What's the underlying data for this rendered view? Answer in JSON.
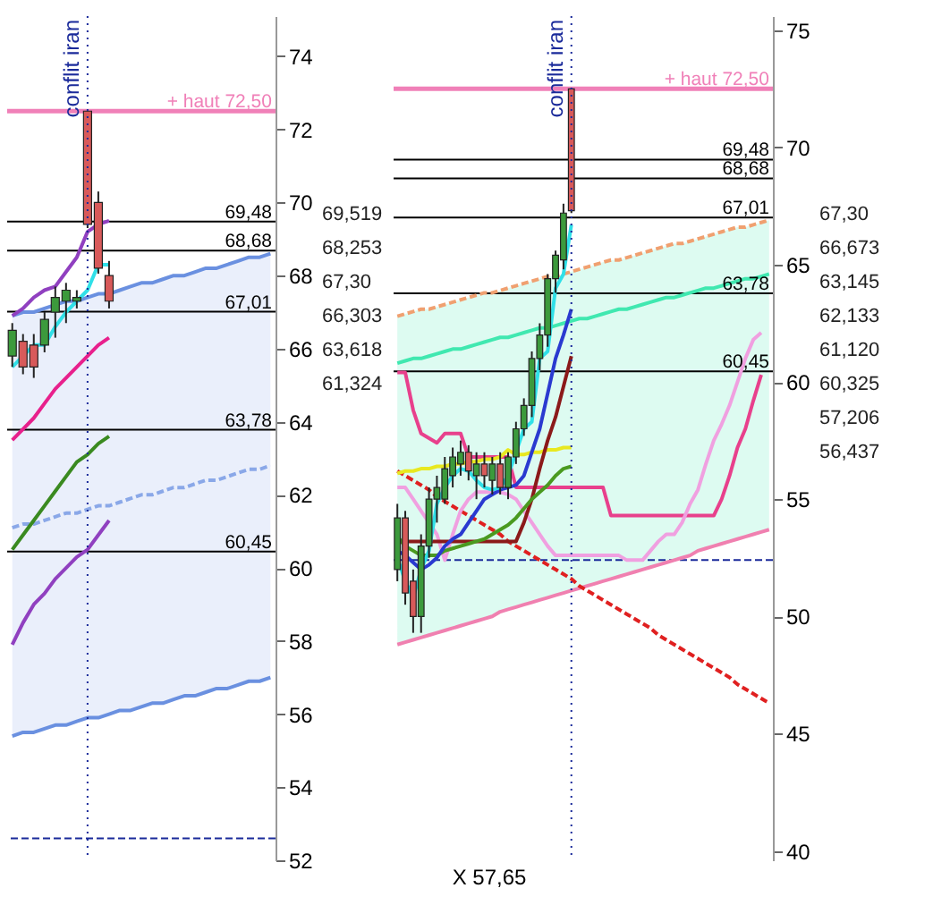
{
  "chart_data": [
    {
      "type": "candlestick",
      "categories": [
        null,
        null,
        null,
        null,
        null,
        null,
        null,
        null,
        null,
        null,
        null,
        null,
        null,
        null,
        null,
        null,
        null,
        null,
        null,
        null,
        null,
        null,
        null,
        null,
        null
      ],
      "ohlc": [
        [
          65.8,
          66.7,
          65.5,
          66.5
        ],
        [
          66.2,
          66.4,
          65.3,
          65.5
        ],
        [
          66.1,
          66.4,
          65.2,
          65.5
        ],
        [
          66.1,
          67.0,
          65.9,
          66.8
        ],
        [
          67.0,
          67.7,
          66.3,
          67.4
        ],
        [
          67.3,
          67.8,
          66.7,
          67.6
        ],
        [
          67.3,
          67.6,
          67.1,
          67.4
        ],
        [
          72.5,
          72.5,
          69.3,
          69.4
        ],
        [
          70.0,
          70.3,
          68.05,
          68.2
        ],
        [
          68.0,
          68.4,
          67.1,
          67.3
        ],
        null,
        null,
        null,
        null,
        null,
        null,
        null,
        null,
        null,
        null,
        null,
        null,
        null,
        null,
        null
      ],
      "series": [
        {
          "type": "line",
          "color": "#8aa8e8",
          "line_style": "dashed",
          "values": [
            61.1,
            61.2,
            61.2,
            61.3,
            61.4,
            61.5,
            61.5,
            61.6,
            61.7,
            61.7,
            61.8,
            61.9,
            62.0,
            62.0,
            62.1,
            62.2,
            62.2,
            62.3,
            62.4,
            62.4,
            62.5,
            62.6,
            62.7,
            62.7,
            62.8
          ],
          "lower": [
            55.4,
            55.5,
            55.5,
            55.6,
            55.7,
            55.7,
            55.8,
            55.9,
            55.9,
            56.0,
            56.1,
            56.1,
            56.2,
            56.3,
            56.3,
            56.4,
            56.5,
            56.5,
            56.6,
            56.7,
            56.7,
            56.8,
            56.9,
            56.9,
            57.0
          ],
          "upper": [
            66.9,
            67.0,
            67.0,
            67.1,
            67.2,
            67.3,
            67.3,
            67.4,
            67.5,
            67.5,
            67.6,
            67.7,
            67.8,
            67.8,
            67.9,
            68.0,
            68.0,
            68.1,
            68.2,
            68.2,
            68.3,
            68.4,
            68.5,
            68.5,
            68.6
          ]
        },
        {
          "type": "line",
          "color": "#6a90e0",
          "values": [
            55.4,
            55.5,
            55.5,
            55.6,
            55.7,
            55.7,
            55.8,
            55.9,
            55.9,
            56.0,
            56.1,
            56.1,
            56.2,
            56.3,
            56.3,
            56.4,
            56.5,
            56.5,
            56.6,
            56.7,
            56.7,
            56.8,
            56.9,
            56.9,
            57.0
          ]
        },
        {
          "type": "line",
          "color": "#6a90e0",
          "values": [
            66.9,
            67.0,
            67.0,
            67.1,
            67.2,
            67.3,
            67.3,
            67.4,
            67.5,
            67.5,
            67.6,
            67.7,
            67.8,
            67.8,
            67.9,
            68.0,
            68.0,
            68.1,
            68.2,
            68.2,
            68.3,
            68.4,
            68.5,
            68.5,
            68.6
          ]
        },
        {
          "type": "line",
          "color": "#9040c0",
          "values": [
            66.9,
            67.1,
            67.4,
            67.6,
            67.7,
            68.1,
            68.5,
            69.2,
            69.4,
            69.5,
            null,
            null,
            null,
            null,
            null,
            null,
            null,
            null,
            null,
            null,
            null,
            null,
            null,
            null,
            null
          ]
        },
        {
          "type": "line",
          "color": "#9040c0",
          "values": [
            57.9,
            58.5,
            59.0,
            59.3,
            59.7,
            60.0,
            60.3,
            60.5,
            60.9,
            61.3,
            null,
            null,
            null,
            null,
            null,
            null,
            null,
            null,
            null,
            null,
            null,
            null,
            null,
            null,
            null
          ]
        },
        {
          "type": "line",
          "color": "#e8208c",
          "values": [
            63.5,
            63.8,
            64.1,
            64.5,
            64.9,
            65.2,
            65.5,
            65.8,
            66.1,
            66.3,
            null,
            null,
            null,
            null,
            null,
            null,
            null,
            null,
            null,
            null,
            null,
            null,
            null,
            null,
            null
          ]
        },
        {
          "type": "line",
          "color": "#3a8a20",
          "values": [
            60.5,
            60.9,
            61.3,
            61.7,
            62.1,
            62.5,
            62.9,
            63.1,
            63.4,
            63.6,
            null,
            null,
            null,
            null,
            null,
            null,
            null,
            null,
            null,
            null,
            null,
            null,
            null,
            null,
            null
          ]
        },
        {
          "type": "line",
          "color": "#30e0e8",
          "values": [
            65.5,
            65.8,
            66.1,
            66.1,
            66.6,
            67.0,
            67.3,
            67.6,
            68.3,
            68.3,
            null,
            null,
            null,
            null,
            null,
            null,
            null,
            null,
            null,
            null,
            null,
            null,
            null,
            null,
            null
          ]
        }
      ],
      "ylim": [
        52,
        75.1
      ],
      "yticks": [
        52,
        54,
        56,
        58,
        60,
        62,
        64,
        66,
        68,
        70,
        72,
        74
      ],
      "tick_labels": "y",
      "ref_lines": [
        {
          "axis": "y",
          "value": 72.5,
          "label": "+ haut 72,50",
          "color": "#f080b8"
        },
        {
          "axis": "y",
          "value": 69.48,
          "label": "69,48",
          "color": "#000000"
        },
        {
          "axis": "y",
          "value": 68.68,
          "label": "68,68",
          "color": "#000000"
        },
        {
          "axis": "y",
          "value": 67.01,
          "label": "67,01",
          "color": "#000000"
        },
        {
          "axis": "y",
          "value": 63.78,
          "label": "63,78",
          "color": "#000000"
        },
        {
          "axis": "y",
          "value": 60.45,
          "label": "60,45",
          "color": "#000000"
        },
        {
          "axis": "y",
          "value": 52.6,
          "color": "#1a2a9a",
          "line_style": "dashed"
        }
      ],
      "annotations": [
        "conflit iran",
        "69,519",
        "68,253",
        "67,30",
        "66,303",
        "63,618",
        "61,324"
      ]
    },
    {
      "type": "candlestick",
      "categories": [
        null,
        null,
        null,
        null,
        null,
        null,
        null,
        null,
        null,
        null,
        null,
        null,
        null,
        null,
        null,
        null,
        null,
        null,
        null,
        null,
        null,
        null,
        null,
        null,
        null,
        null,
        null,
        null,
        null,
        null,
        null,
        null,
        null,
        null,
        null,
        null,
        null,
        null,
        null,
        null,
        null,
        null,
        null,
        null,
        null,
        null,
        null,
        null
      ],
      "xlabel": "X 57,65",
      "ohlc": [
        [
          52.0,
          54.8,
          51.5,
          54.2
        ],
        [
          54.2,
          54.5,
          50.5,
          51.0
        ],
        [
          51.5,
          52.0,
          49.3,
          50.0
        ],
        [
          50.0,
          53.5,
          49.3,
          53.0
        ],
        [
          53.0,
          55.5,
          52.5,
          55.0
        ],
        [
          55.0,
          56.0,
          54.0,
          55.5
        ],
        [
          55.0,
          56.8,
          54.8,
          56.3
        ],
        [
          56.0,
          57.2,
          55.5,
          56.8
        ],
        [
          56.5,
          57.5,
          56.0,
          57.0
        ],
        [
          57.0,
          57.3,
          55.8,
          56.2
        ],
        [
          56.0,
          57.0,
          55.0,
          56.5
        ],
        [
          56.5,
          57.0,
          55.5,
          56.0
        ],
        [
          55.8,
          56.8,
          55.2,
          56.5
        ],
        [
          56.5,
          57.0,
          55.2,
          55.5
        ],
        [
          55.5,
          57.0,
          55.0,
          56.8
        ],
        [
          56.8,
          58.3,
          56.5,
          58.0
        ],
        [
          58.0,
          59.3,
          57.7,
          59.0
        ],
        [
          59.0,
          61.3,
          58.5,
          61.0
        ],
        [
          61.0,
          62.5,
          60.5,
          62.0
        ],
        [
          62.0,
          64.6,
          61.5,
          64.4
        ],
        [
          64.4,
          65.6,
          63.8,
          65.4
        ],
        [
          65.2,
          67.6,
          64.8,
          67.2
        ],
        [
          72.5,
          72.5,
          67.2,
          67.3
        ],
        null,
        null,
        null,
        null,
        null,
        null,
        null,
        null,
        null,
        null,
        null,
        null,
        null,
        null,
        null,
        null,
        null,
        null,
        null,
        null,
        null,
        null,
        null,
        null,
        null
      ],
      "series": [
        {
          "type": "line",
          "color": "#40e8b0",
          "values": [
            60.8,
            60.9,
            61.0,
            61.0,
            61.1,
            61.2,
            61.3,
            61.4,
            61.4,
            61.5,
            61.6,
            61.7,
            61.8,
            61.9,
            61.9,
            62.0,
            62.1,
            62.2,
            62.3,
            62.3,
            62.4,
            62.5,
            62.6,
            62.7,
            62.7,
            62.8,
            62.9,
            63.0,
            63.1,
            63.1,
            63.2,
            63.3,
            63.4,
            63.5,
            63.6,
            63.6,
            63.7,
            63.8,
            63.9,
            64.0,
            64.0,
            64.1,
            64.2,
            64.3,
            64.4,
            64.4,
            64.5,
            64.6
          ],
          "lower": [
            48.8,
            48.9,
            49.0,
            49.1,
            49.2,
            49.3,
            49.4,
            49.5,
            49.6,
            49.7,
            49.8,
            49.9,
            50.0,
            50.2,
            50.3,
            50.4,
            50.5,
            50.6,
            50.7,
            50.8,
            50.9,
            51.0,
            51.1,
            51.2,
            51.3,
            51.4,
            51.5,
            51.6,
            51.7,
            51.8,
            51.9,
            52.0,
            52.1,
            52.2,
            52.3,
            52.4,
            52.5,
            52.6,
            52.8,
            52.9,
            53.0,
            53.1,
            53.2,
            53.3,
            53.4,
            53.5,
            53.6,
            53.7
          ],
          "upper": [
            62.8,
            62.9,
            63.0,
            63.1,
            63.1,
            63.2,
            63.3,
            63.4,
            63.5,
            63.6,
            63.7,
            63.8,
            63.8,
            63.9,
            64.0,
            64.1,
            64.2,
            64.3,
            64.4,
            64.5,
            64.5,
            64.6,
            64.7,
            64.8,
            64.9,
            65.0,
            65.1,
            65.2,
            65.2,
            65.3,
            65.4,
            65.5,
            65.6,
            65.7,
            65.8,
            65.9,
            65.9,
            66.0,
            66.1,
            66.2,
            66.3,
            66.4,
            66.5,
            66.6,
            66.6,
            66.7,
            66.8,
            66.9
          ]
        },
        {
          "type": "line",
          "color": "#f080b0",
          "values": [
            48.8,
            48.9,
            49.0,
            49.1,
            49.2,
            49.3,
            49.4,
            49.5,
            49.6,
            49.7,
            49.8,
            49.9,
            50.0,
            50.2,
            50.3,
            50.4,
            50.5,
            50.6,
            50.7,
            50.8,
            50.9,
            51.0,
            51.1,
            51.2,
            51.3,
            51.4,
            51.5,
            51.6,
            51.7,
            51.8,
            51.9,
            52.0,
            52.1,
            52.2,
            52.3,
            52.4,
            52.5,
            52.6,
            52.8,
            52.9,
            53.0,
            53.1,
            53.2,
            53.3,
            53.4,
            53.5,
            53.6,
            53.7
          ]
        },
        {
          "type": "line",
          "color": "#f0a070",
          "line_style": "dashed",
          "values": [
            62.8,
            62.9,
            63.0,
            63.1,
            63.1,
            63.2,
            63.3,
            63.4,
            63.5,
            63.6,
            63.7,
            63.8,
            63.8,
            63.9,
            64.0,
            64.1,
            64.2,
            64.3,
            64.4,
            64.5,
            64.5,
            64.6,
            64.7,
            64.8,
            64.9,
            65.0,
            65.1,
            65.2,
            65.2,
            65.3,
            65.4,
            65.5,
            65.6,
            65.7,
            65.8,
            65.9,
            65.9,
            66.0,
            66.1,
            66.2,
            66.3,
            66.4,
            66.5,
            66.6,
            66.6,
            66.7,
            66.8,
            66.9
          ]
        },
        {
          "type": "line",
          "color": "#e02020",
          "line_style": "dashed",
          "values": [
            56.2,
            56.0,
            55.8,
            55.6,
            55.4,
            55.1,
            54.9,
            54.7,
            54.5,
            54.3,
            54.1,
            53.9,
            53.7,
            53.5,
            53.2,
            53.0,
            52.8,
            52.6,
            52.4,
            52.2,
            52.0,
            51.8,
            51.6,
            51.3,
            51.1,
            50.9,
            50.7,
            50.5,
            50.3,
            50.1,
            49.9,
            49.7,
            49.5,
            49.2,
            49.0,
            48.8,
            48.6,
            48.4,
            48.2,
            48.0,
            47.8,
            47.6,
            47.4,
            47.1,
            46.9,
            46.7,
            46.5,
            46.3
          ]
        },
        {
          "type": "line",
          "color": "#e8408c",
          "values": [
            60.4,
            60.4,
            58.8,
            57.8,
            57.6,
            57.4,
            57.8,
            57.8,
            57.8,
            56.8,
            56.8,
            56.8,
            56.8,
            56.8,
            56.8,
            55.5,
            55.5,
            55.5,
            55.5,
            55.5,
            55.5,
            55.5,
            55.5,
            55.5,
            55.5,
            55.5,
            55.5,
            54.3,
            54.3,
            54.3,
            54.3,
            54.3,
            54.3,
            54.3,
            54.3,
            54.3,
            54.3,
            54.3,
            54.3,
            54.3,
            54.3,
            55.0,
            56.0,
            57.2,
            58.0,
            59.2,
            60.3,
            null
          ]
        },
        {
          "type": "line",
          "color": "#f0a0e0",
          "values": [
            55.5,
            55.5,
            55.0,
            54.5,
            54.0,
            53.5,
            52.4,
            53.5,
            54.5,
            55.0,
            55.3,
            55.3,
            55.3,
            55.3,
            55.2,
            55.0,
            54.5,
            54.0,
            53.5,
            53.0,
            52.6,
            52.6,
            52.6,
            52.6,
            52.6,
            52.6,
            52.6,
            52.6,
            52.6,
            52.4,
            52.4,
            52.4,
            52.8,
            53.2,
            53.5,
            53.5,
            54.0,
            54.8,
            55.4,
            56.5,
            57.5,
            58.2,
            59.0,
            60.0,
            61.0,
            61.8,
            62.1,
            null
          ]
        },
        {
          "type": "line",
          "color": "#e8e820",
          "values": [
            56.1,
            56.2,
            56.2,
            56.3,
            56.3,
            56.4,
            56.4,
            56.5,
            56.5,
            56.6,
            56.6,
            56.7,
            56.7,
            56.8,
            57.1,
            56.9,
            56.9,
            57.0,
            57.0,
            57.1,
            57.1,
            57.2,
            57.2,
            null,
            null,
            null,
            null,
            null,
            null,
            null,
            null,
            null,
            null,
            null,
            null,
            null,
            null,
            null,
            null,
            null,
            null,
            null,
            null,
            null,
            null,
            null,
            null,
            null
          ]
        },
        {
          "type": "line",
          "color": "#8b1a1a",
          "values": [
            53.2,
            53.2,
            53.2,
            53.2,
            53.2,
            53.2,
            53.2,
            53.2,
            53.2,
            53.2,
            53.2,
            53.2,
            53.2,
            53.2,
            53.2,
            53.2,
            54.0,
            55.0,
            56.3,
            57.5,
            58.5,
            59.8,
            61.1,
            null,
            null,
            null,
            null,
            null,
            null,
            null,
            null,
            null,
            null,
            null,
            null,
            null,
            null,
            null,
            null,
            null,
            null,
            null,
            null,
            null,
            null,
            null,
            null,
            null
          ]
        },
        {
          "type": "line",
          "color": "#4a9a20",
          "values": [
            53.4,
            53.0,
            52.8,
            52.6,
            52.6,
            52.6,
            52.8,
            52.9,
            53.0,
            53.1,
            53.2,
            53.3,
            53.5,
            53.7,
            53.9,
            54.2,
            54.6,
            55.0,
            55.3,
            55.6,
            56.0,
            56.3,
            56.4,
            null,
            null,
            null,
            null,
            null,
            null,
            null,
            null,
            null,
            null,
            null,
            null,
            null,
            null,
            null,
            null,
            null,
            null,
            null,
            null,
            null,
            null,
            null,
            null,
            null
          ]
        },
        {
          "type": "line",
          "color": "#2a3ad0",
          "values": [
            52.8,
            52.6,
            52.3,
            52.0,
            52.2,
            52.5,
            53.0,
            53.3,
            53.5,
            54.0,
            54.5,
            55.0,
            55.2,
            55.4,
            55.5,
            55.6,
            56.0,
            57.0,
            58.0,
            59.5,
            61.0,
            62.0,
            63.1,
            null,
            null,
            null,
            null,
            null,
            null,
            null,
            null,
            null,
            null,
            null,
            null,
            null,
            null,
            null,
            null,
            null,
            null,
            null,
            null,
            null,
            null,
            null,
            null,
            null
          ]
        },
        {
          "type": "line",
          "color": "#30e0e8",
          "values": [
            52.5,
            51.5,
            50.8,
            52.0,
            52.8,
            54.8,
            55.5,
            56.0,
            56.3,
            56.2,
            55.8,
            55.5,
            55.4,
            55.5,
            56.0,
            57.0,
            58.0,
            58.3,
            61.0,
            61.3,
            64.0,
            64.6,
            66.7,
            null,
            null,
            null,
            null,
            null,
            null,
            null,
            null,
            null,
            null,
            null,
            null,
            null,
            null,
            null,
            null,
            null,
            null,
            null,
            null,
            null,
            null,
            null,
            null,
            null
          ]
        }
      ],
      "ylim": [
        39.6,
        75.6
      ],
      "yticks": [
        40,
        45,
        50,
        55,
        60,
        65,
        70,
        75
      ],
      "tick_labels": "y",
      "ref_lines": [
        {
          "axis": "y",
          "value": 72.5,
          "label": "+ haut 72,50",
          "color": "#f080b8"
        },
        {
          "axis": "y",
          "value": 69.48,
          "label": "69,48",
          "color": "#000000"
        },
        {
          "axis": "y",
          "value": 68.68,
          "label": "68,68",
          "color": "#000000"
        },
        {
          "axis": "y",
          "value": 67.01,
          "label": "67,01",
          "color": "#000000"
        },
        {
          "axis": "y",
          "value": 63.78,
          "label": "63,78",
          "color": "#000000"
        },
        {
          "axis": "y",
          "value": 60.45,
          "label": "60,45",
          "color": "#000000"
        },
        {
          "axis": "y",
          "value": 52.4,
          "color": "#1a2a9a",
          "line_style": "dashed"
        }
      ],
      "annotations": [
        "conflit iran",
        "67,30",
        "66,673",
        "63,145",
        "62,133",
        "61,120",
        "60,325",
        "57,206",
        "56,437"
      ]
    }
  ]
}
